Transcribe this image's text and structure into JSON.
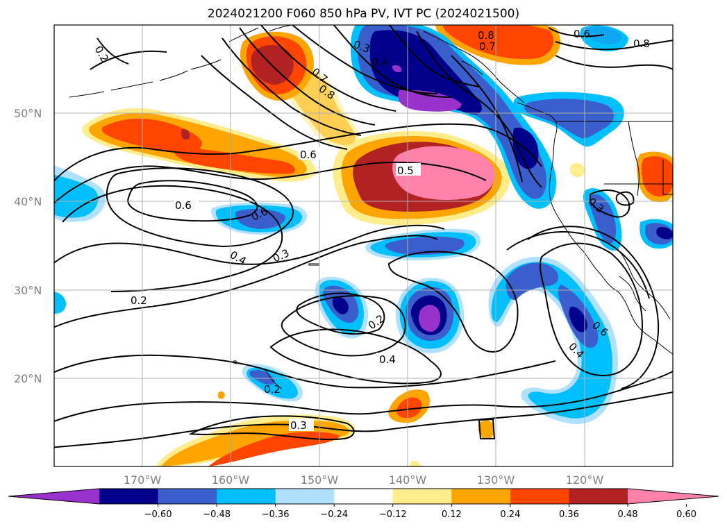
{
  "title": "2024021200 F060 850 hPa PV, IVT PC (2024021500)",
  "lat_labels": [
    "50°N",
    "40°N",
    "30°N",
    "20°N"
  ],
  "lon_labels": [
    "170°W",
    "160°W",
    "150°W",
    "140°W",
    "130°W",
    "120°W"
  ],
  "contour_labels": [
    "0.2",
    "0.3",
    "0.4",
    "0.7",
    "0.8",
    "0.6",
    "0.5",
    "0.6",
    "0.6",
    "0.4",
    "0.3",
    "0.2",
    "0.2",
    "0.4",
    "0.2",
    "0.3",
    "0.8",
    "0.7",
    "0.6",
    "0.8",
    "0.3",
    "0.6",
    "0.4"
  ],
  "colorbar": {
    "ticks": [
      "−0.60",
      "−0.48",
      "−0.36",
      "−0.24",
      "−0.12",
      "0.12",
      "0.24",
      "0.36",
      "0.48",
      "0.60"
    ],
    "colors": [
      "#9932cc",
      "#00008b",
      "#3a5fcd",
      "#00bfff",
      "#b0e2ff",
      "#ffffff",
      "#ffec8b",
      "#ffa500",
      "#ff4500",
      "#b22222",
      "#ff82ab"
    ]
  }
}
